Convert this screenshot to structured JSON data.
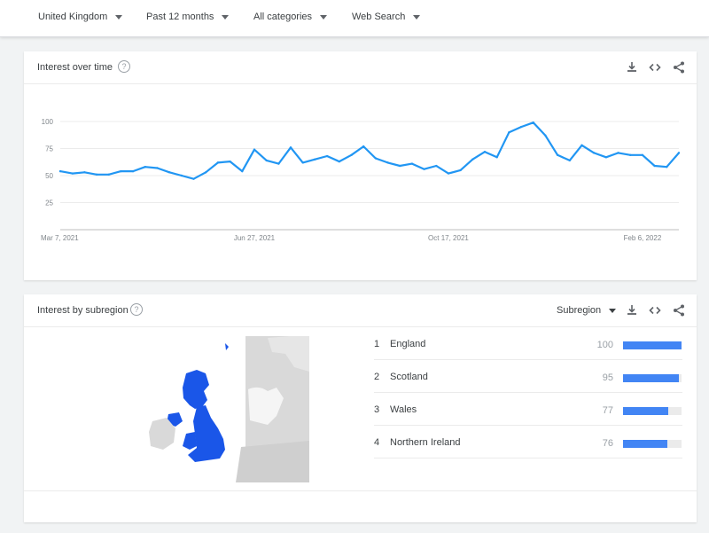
{
  "filters": {
    "region": "United Kingdom",
    "period": "Past 12 months",
    "category": "All categories",
    "search_type": "Web Search"
  },
  "interest_over_time": {
    "title": "Interest over time",
    "help_glyph": "?"
  },
  "interest_by_subregion": {
    "title": "Interest by subregion",
    "help_glyph": "?",
    "resolution_select": "Subregion",
    "rows": [
      {
        "rank": "1",
        "name": "England",
        "value": "100"
      },
      {
        "rank": "2",
        "name": "Scotland",
        "value": "95"
      },
      {
        "rank": "3",
        "name": "Wales",
        "value": "77"
      },
      {
        "rank": "4",
        "name": "Northern Ireland",
        "value": "76"
      }
    ],
    "bar_fraction": [
      1.0,
      0.95,
      0.77,
      0.76
    ]
  },
  "colors": {
    "line": "#2196f3",
    "bar": "#4285f4",
    "map_highlight": "#1a56e8",
    "map_base": "#d9d9d9"
  },
  "icons": [
    "download-icon",
    "embed-icon",
    "share-icon",
    "help-icon",
    "dropdown-caret-icon"
  ],
  "chart_data": {
    "type": "line",
    "title": "",
    "xlabel": "",
    "ylabel": "",
    "ylim": [
      0,
      100
    ],
    "yticks": [
      "25",
      "50",
      "75",
      "100"
    ],
    "xtick_labels": [
      "Mar 7, 2021",
      "Jun 27, 2021",
      "Oct 17, 2021",
      "Feb 6, 2022"
    ],
    "xtick_index": [
      0,
      16,
      32,
      48
    ],
    "grid": true,
    "series": [
      {
        "values": [
          54,
          52,
          53,
          51,
          51,
          54,
          54,
          58,
          57,
          53,
          50,
          47,
          53,
          62,
          63,
          54,
          74,
          64,
          61,
          76,
          62,
          65,
          68,
          63,
          69,
          77,
          66,
          62,
          59,
          61,
          56,
          59,
          52,
          55,
          65,
          72,
          67,
          90,
          95,
          99,
          87,
          69,
          64,
          78,
          71,
          67,
          71,
          69,
          69,
          59,
          58,
          71
        ]
      }
    ]
  }
}
